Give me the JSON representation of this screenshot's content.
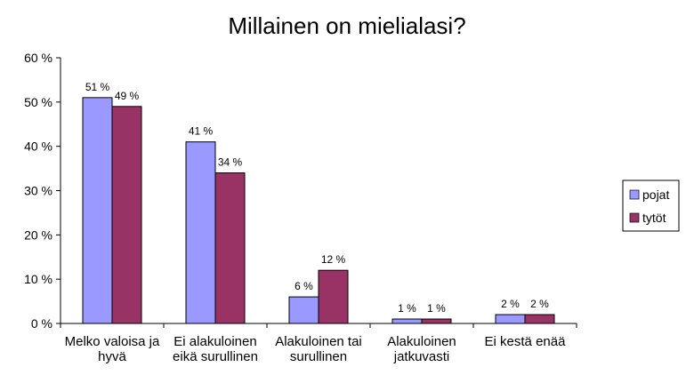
{
  "chart_data": {
    "type": "bar",
    "title": "Millainen on mielialasi?",
    "categories": [
      [
        "Melko valoisa ja",
        "hyvä"
      ],
      [
        "Ei alakuloinen",
        "eikä surullinen"
      ],
      [
        "Alakuloinen tai",
        "surullinen"
      ],
      [
        "Alakuloinen",
        "jatkuvasti"
      ],
      [
        "Ei kestä enää"
      ]
    ],
    "series": [
      {
        "name": "pojat",
        "color": "#9999ff",
        "values": [
          51,
          41,
          6,
          1,
          2
        ],
        "labels": [
          "51 %",
          "41 %",
          "6 %",
          "1 %",
          "2 %"
        ]
      },
      {
        "name": "tytöt",
        "color": "#993366",
        "values": [
          49,
          34,
          12,
          1,
          2
        ],
        "labels": [
          "49 %",
          "34 %",
          "12 %",
          "1 %",
          "2 %"
        ]
      }
    ],
    "y_ticks": [
      "0 %",
      "10 %",
      "20 %",
      "30 %",
      "40 %",
      "50 %",
      "60 %"
    ],
    "ylim": [
      0,
      60
    ],
    "grid": false,
    "legend": "right"
  }
}
